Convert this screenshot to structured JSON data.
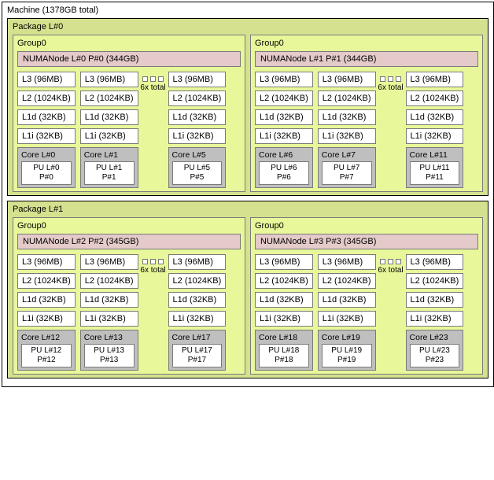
{
  "machine": {
    "title": "Machine (1378GB total)"
  },
  "packages": [
    {
      "title": "Package L#0",
      "groups": [
        {
          "title": "Group0",
          "numanode": "NUMANode L#0 P#0 (344GB)",
          "dots": "6x total",
          "cols": [
            {
              "caches": [
                "L3 (96MB)",
                "L2 (1024KB)",
                "L1d (32KB)",
                "L1i (32KB)"
              ],
              "core": {
                "title": "Core L#0",
                "pu": "PU L#0\nP#0"
              }
            },
            {
              "caches": [
                "L3 (96MB)",
                "L2 (1024KB)",
                "L1d (32KB)",
                "L1i (32KB)"
              ],
              "core": {
                "title": "Core L#1",
                "pu": "PU L#1\nP#1"
              }
            },
            {
              "caches": [
                "L3 (96MB)",
                "L2 (1024KB)",
                "L1d (32KB)",
                "L1i (32KB)"
              ],
              "core": {
                "title": "Core L#5",
                "pu": "PU L#5\nP#5"
              }
            }
          ]
        },
        {
          "title": "Group0",
          "numanode": "NUMANode L#1 P#1 (344GB)",
          "dots": "6x total",
          "cols": [
            {
              "caches": [
                "L3 (96MB)",
                "L2 (1024KB)",
                "L1d (32KB)",
                "L1i (32KB)"
              ],
              "core": {
                "title": "Core L#6",
                "pu": "PU L#6\nP#6"
              }
            },
            {
              "caches": [
                "L3 (96MB)",
                "L2 (1024KB)",
                "L1d (32KB)",
                "L1i (32KB)"
              ],
              "core": {
                "title": "Core L#7",
                "pu": "PU L#7\nP#7"
              }
            },
            {
              "caches": [
                "L3 (96MB)",
                "L2 (1024KB)",
                "L1d (32KB)",
                "L1i (32KB)"
              ],
              "core": {
                "title": "Core L#11",
                "pu": "PU L#11\nP#11"
              }
            }
          ]
        }
      ]
    },
    {
      "title": "Package L#1",
      "groups": [
        {
          "title": "Group0",
          "numanode": "NUMANode L#2 P#2 (345GB)",
          "dots": "6x total",
          "cols": [
            {
              "caches": [
                "L3 (96MB)",
                "L2 (1024KB)",
                "L1d (32KB)",
                "L1i (32KB)"
              ],
              "core": {
                "title": "Core L#12",
                "pu": "PU L#12\nP#12"
              }
            },
            {
              "caches": [
                "L3 (96MB)",
                "L2 (1024KB)",
                "L1d (32KB)",
                "L1i (32KB)"
              ],
              "core": {
                "title": "Core L#13",
                "pu": "PU L#13\nP#13"
              }
            },
            {
              "caches": [
                "L3 (96MB)",
                "L2 (1024KB)",
                "L1d (32KB)",
                "L1i (32KB)"
              ],
              "core": {
                "title": "Core L#17",
                "pu": "PU L#17\nP#17"
              }
            }
          ]
        },
        {
          "title": "Group0",
          "numanode": "NUMANode L#3 P#3 (345GB)",
          "dots": "6x total",
          "cols": [
            {
              "caches": [
                "L3 (96MB)",
                "L2 (1024KB)",
                "L1d (32KB)",
                "L1i (32KB)"
              ],
              "core": {
                "title": "Core L#18",
                "pu": "PU L#18\nP#18"
              }
            },
            {
              "caches": [
                "L3 (96MB)",
                "L2 (1024KB)",
                "L1d (32KB)",
                "L1i (32KB)"
              ],
              "core": {
                "title": "Core L#19",
                "pu": "PU L#19\nP#19"
              }
            },
            {
              "caches": [
                "L3 (96MB)",
                "L2 (1024KB)",
                "L1d (32KB)",
                "L1i (32KB)"
              ],
              "core": {
                "title": "Core L#23",
                "pu": "PU L#23\nP#23"
              }
            }
          ]
        }
      ]
    }
  ]
}
